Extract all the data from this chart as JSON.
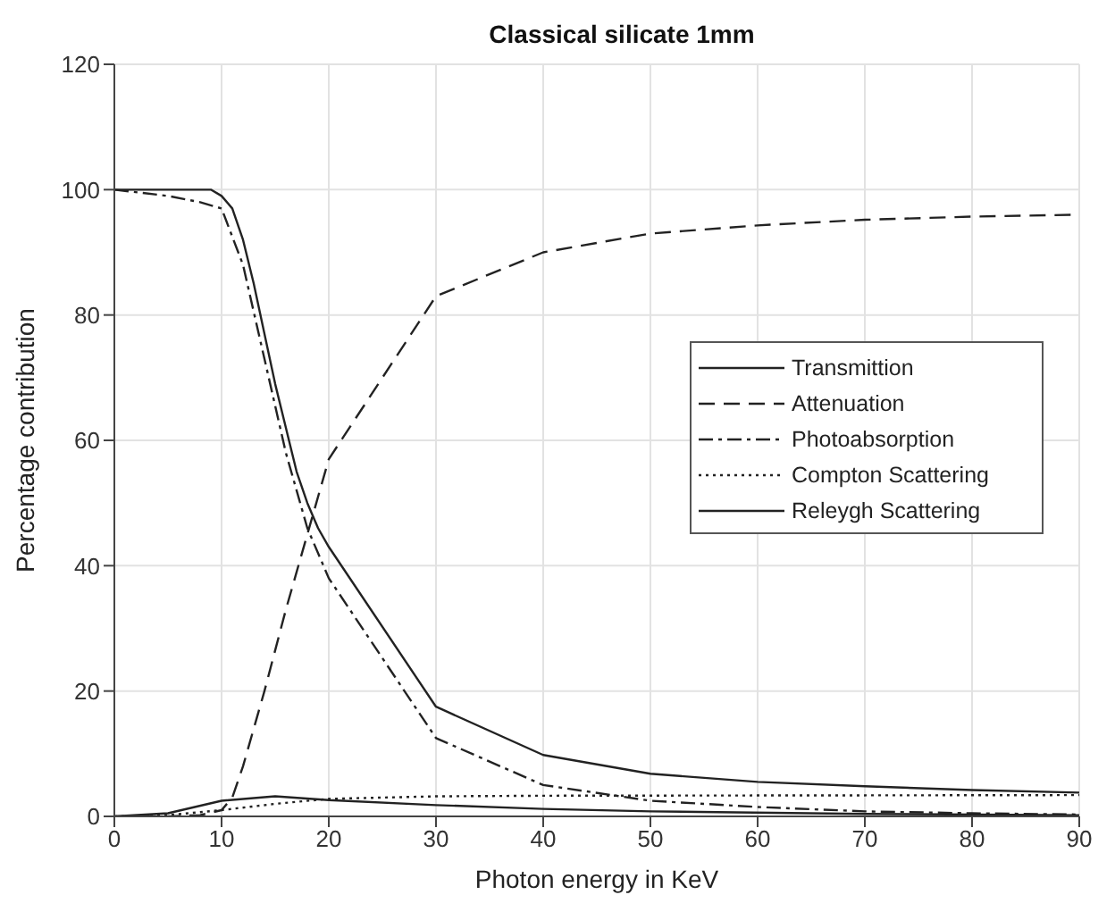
{
  "chart_data": {
    "type": "line",
    "title": "Classical silicate 1mm",
    "xlabel": "Photon energy in KeV",
    "ylabel": "Percentage contribution",
    "xlim": [
      0,
      90
    ],
    "xticks": [
      0,
      10,
      20,
      30,
      40,
      50,
      60,
      70,
      80,
      90
    ],
    "ylim": [
      0,
      120
    ],
    "yticks": [
      0,
      20,
      40,
      60,
      80,
      100,
      120
    ],
    "grid": true,
    "legend": "right",
    "marker": "none",
    "series": [
      {
        "name": "Transmittion",
        "color": "#222222",
        "line_style": "solid",
        "x": [
          0,
          5,
          9,
          10,
          11,
          12,
          13,
          14,
          15,
          16,
          17,
          18,
          19,
          20,
          30,
          40,
          50,
          60,
          70,
          80,
          90
        ],
        "values": [
          100,
          100,
          100,
          99,
          97,
          92,
          85,
          77,
          69,
          62,
          55,
          50,
          46,
          43,
          17.5,
          9.8,
          6.8,
          5.5,
          4.8,
          4.2,
          3.8
        ]
      },
      {
        "name": "Attenuation",
        "color": "#222222",
        "line_style": "dashed",
        "x": [
          0,
          5,
          8,
          10,
          11,
          12,
          14,
          16,
          18,
          20,
          30,
          40,
          50,
          60,
          70,
          80,
          90
        ],
        "values": [
          0,
          0,
          0.2,
          1,
          3,
          8,
          20,
          33,
          45,
          57,
          83,
          90,
          93,
          94.3,
          95.2,
          95.7,
          96
        ]
      },
      {
        "name": "Photoabsorption",
        "color": "#222222",
        "line_style": "dashdot",
        "x": [
          0,
          5,
          8,
          10,
          12,
          14,
          16,
          18,
          20,
          30,
          40,
          50,
          60,
          70,
          80,
          90
        ],
        "values": [
          100,
          99,
          98,
          97,
          88,
          73,
          58,
          46,
          38,
          12.5,
          5,
          2.5,
          1.5,
          0.8,
          0.5,
          0.3
        ]
      },
      {
        "name": "Compton Scattering",
        "color": "#222222",
        "line_style": "dotted",
        "x": [
          0,
          5,
          10,
          15,
          20,
          30,
          40,
          90
        ],
        "values": [
          0,
          0.2,
          1,
          2,
          2.8,
          3.2,
          3.3,
          3.4
        ]
      },
      {
        "name": "Releygh Scattering",
        "color": "#222222",
        "line_style": "solid",
        "x": [
          0,
          5,
          10,
          15,
          20,
          30,
          40,
          50,
          70,
          90
        ],
        "values": [
          0,
          0.5,
          2.5,
          3.2,
          2.6,
          1.8,
          1.2,
          0.8,
          0.4,
          0.2
        ]
      }
    ]
  }
}
